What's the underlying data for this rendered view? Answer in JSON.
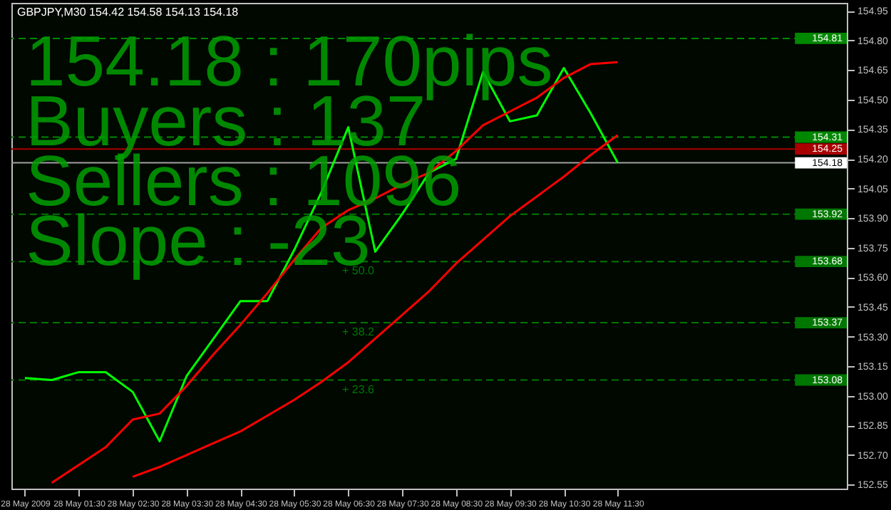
{
  "chart_data": {
    "type": "line",
    "title": "GBPJPY,M30  154.42 154.58 154.13 154.18",
    "categories": [
      "28 May 2009",
      null,
      "28 May 01:30",
      null,
      "28 May 02:30",
      null,
      "28 May 03:30",
      null,
      "28 May 04:30",
      null,
      "28 May 05:30",
      null,
      "28 May 06:30",
      null,
      "28 May 07:30",
      null,
      "28 May 08:30",
      null,
      "28 May 09:30",
      null,
      "28 May 10:30",
      null,
      "28 May 11:30",
      null,
      null,
      null,
      null,
      null,
      null,
      null,
      null
    ],
    "series": [
      {
        "color": "#00ff00",
        "values": [
          153.09,
          153.08,
          153.12,
          153.12,
          153.02,
          152.77,
          153.1,
          153.29,
          153.48,
          153.48,
          153.74,
          154.03,
          154.36,
          153.73,
          153.92,
          154.13,
          154.2,
          154.64,
          154.39,
          154.42,
          154.66,
          154.43,
          154.18,
          null,
          null,
          null,
          null,
          null,
          null,
          null,
          null
        ]
      },
      {
        "color": "#ff0000",
        "values": [
          null,
          152.56,
          152.65,
          152.74,
          152.88,
          152.91,
          153.05,
          153.21,
          153.36,
          153.52,
          153.69,
          153.85,
          153.94,
          154.0,
          154.07,
          154.13,
          154.24,
          154.37,
          154.44,
          154.51,
          154.61,
          154.68,
          154.69,
          null,
          null,
          null,
          null,
          null,
          null,
          null,
          null
        ]
      },
      {
        "color": "#ff0000",
        "values": [
          null,
          null,
          null,
          null,
          152.59,
          152.64,
          152.7,
          152.76,
          152.82,
          152.9,
          152.98,
          153.07,
          153.17,
          153.29,
          153.41,
          153.53,
          153.67,
          153.79,
          153.91,
          154.01,
          154.11,
          154.22,
          154.32,
          null,
          null,
          null,
          null,
          null,
          null,
          null,
          null
        ]
      }
    ],
    "ylim": [
      152.53,
      154.99
    ],
    "yticks": [
      152.55,
      {
        "value": 152.7,
        "label": "152.70"
      },
      152.85,
      {
        "value": 153.0,
        "label": "153.00"
      },
      153.15,
      {
        "value": 153.3,
        "label": "153.30"
      },
      153.45,
      {
        "value": 153.6,
        "label": "153.60"
      },
      153.75,
      {
        "value": 153.9,
        "label": "153.90"
      },
      154.05,
      {
        "value": 154.2,
        "label": "154.20"
      },
      154.35,
      {
        "value": 154.5,
        "label": "154.50"
      },
      154.65,
      {
        "value": 154.8,
        "label": "154.80"
      },
      154.95
    ],
    "ref_lines": [
      {
        "axis": "y",
        "value": 154.81,
        "label": "154.81",
        "color": "#008800",
        "line_style": "dashed"
      },
      {
        "axis": "y",
        "value": 154.31,
        "label": "154.31",
        "color": "#008800",
        "line_style": "dashed"
      },
      {
        "axis": "y",
        "value": 154.25,
        "label": "154.25",
        "color": "#aa0000",
        "line_style": "solid"
      },
      {
        "axis": "y",
        "value": 154.18,
        "label": "154.18",
        "color": "#a0a0a0",
        "line_style": "solid"
      },
      {
        "axis": "y",
        "value": 153.92,
        "label": "153.92",
        "color": "#007700",
        "line_style": "dashed"
      },
      {
        "axis": "y",
        "value": 153.68,
        "label": "153.68",
        "color": "#007700",
        "line_style": "dashed"
      },
      {
        "axis": "y",
        "value": 153.37,
        "label": "153.37",
        "color": "#007700",
        "line_style": "dashed"
      },
      {
        "axis": "y",
        "value": 153.08,
        "label": "153.08",
        "color": "#007700",
        "line_style": "dashed"
      }
    ],
    "annotations": [
      "154.18 : 170pips",
      "Buyers : 137",
      "Sellers : 1096",
      "Slope : -23",
      {
        "text": "+ 50.0",
        "y": 153.68
      },
      {
        "text": "+ 38.2",
        "y": 153.37
      },
      {
        "text": "+ 23.6",
        "y": 153.08
      }
    ],
    "grid": false,
    "marker": "none",
    "line_style": "solid"
  }
}
